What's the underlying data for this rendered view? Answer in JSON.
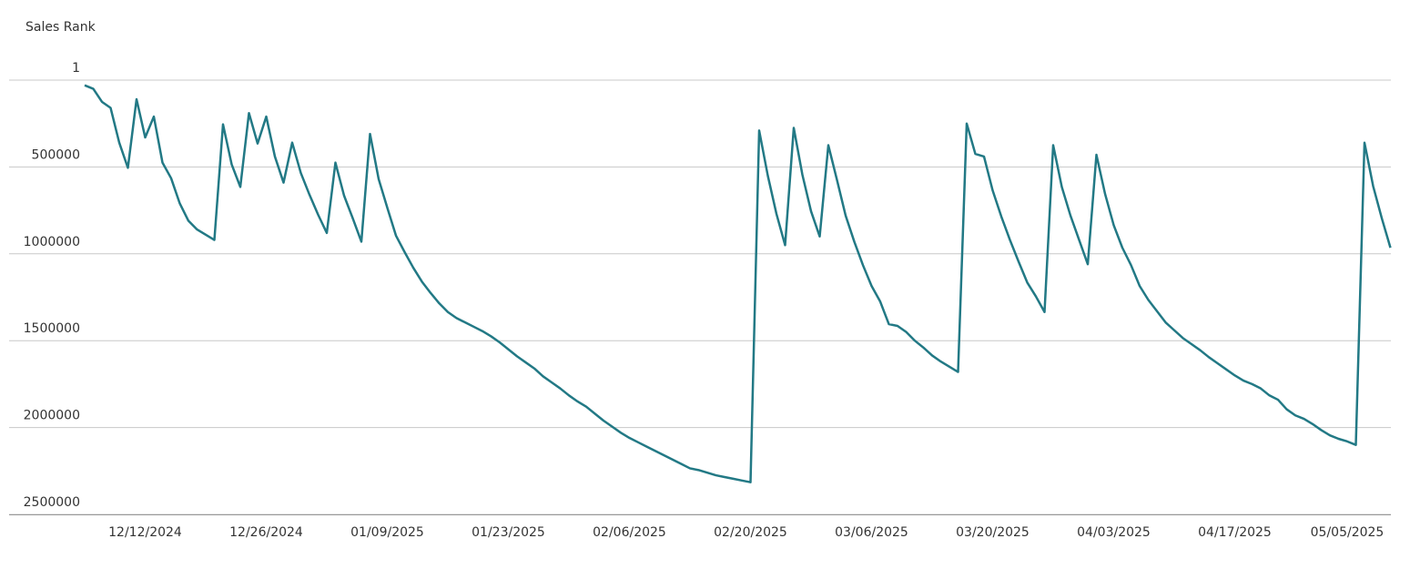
{
  "chart_data": {
    "type": "line",
    "y_label": "Sales Rank",
    "categories": [
      null,
      null,
      null,
      null,
      null,
      null,
      null,
      "12/12/2024",
      null,
      null,
      null,
      null,
      null,
      null,
      null,
      null,
      null,
      null,
      null,
      null,
      null,
      "12/26/2024",
      null,
      null,
      null,
      null,
      null,
      null,
      null,
      null,
      null,
      null,
      null,
      null,
      null,
      "01/09/2025",
      null,
      null,
      null,
      null,
      null,
      null,
      null,
      null,
      null,
      null,
      null,
      null,
      null,
      "01/23/2025",
      null,
      null,
      null,
      null,
      null,
      null,
      null,
      null,
      null,
      null,
      null,
      null,
      null,
      "02/06/2025",
      null,
      null,
      null,
      null,
      null,
      null,
      null,
      null,
      null,
      null,
      null,
      null,
      null,
      "02/20/2025",
      null,
      null,
      null,
      null,
      null,
      null,
      null,
      null,
      null,
      null,
      null,
      null,
      null,
      "03/06/2025",
      null,
      null,
      null,
      null,
      null,
      null,
      null,
      null,
      null,
      null,
      null,
      null,
      null,
      "03/20/2025",
      null,
      null,
      null,
      null,
      null,
      null,
      null,
      null,
      null,
      null,
      null,
      null,
      null,
      "04/03/2025",
      null,
      null,
      null,
      null,
      null,
      null,
      null,
      null,
      null,
      null,
      null,
      null,
      null,
      "04/17/2025",
      null,
      null,
      null,
      null,
      null,
      null,
      null,
      null,
      null,
      null,
      null,
      null,
      "05/05/2025",
      null,
      null,
      null,
      null,
      null
    ],
    "values": [
      30000,
      50000,
      125000,
      160000,
      360000,
      505000,
      110000,
      330000,
      210000,
      475000,
      565000,
      710000,
      810000,
      860000,
      890000,
      920000,
      255000,
      485000,
      615000,
      190000,
      365000,
      210000,
      440000,
      590000,
      360000,
      535000,
      660000,
      775000,
      880000,
      475000,
      665000,
      795000,
      930000,
      310000,
      570000,
      735000,
      895000,
      990000,
      1080000,
      1160000,
      1225000,
      1285000,
      1335000,
      1370000,
      1395000,
      1420000,
      1445000,
      1475000,
      1510000,
      1550000,
      1590000,
      1625000,
      1660000,
      1705000,
      1740000,
      1775000,
      1815000,
      1850000,
      1880000,
      1920000,
      1960000,
      1995000,
      2030000,
      2060000,
      2085000,
      2110000,
      2135000,
      2160000,
      2185000,
      2210000,
      2235000,
      2245000,
      2260000,
      2275000,
      2285000,
      2295000,
      2305000,
      2315000,
      290000,
      550000,
      770000,
      950000,
      275000,
      545000,
      755000,
      900000,
      375000,
      575000,
      780000,
      930000,
      1065000,
      1185000,
      1275000,
      1405000,
      1415000,
      1450000,
      1500000,
      1540000,
      1585000,
      1620000,
      1650000,
      1680000,
      250000,
      425000,
      440000,
      635000,
      785000,
      920000,
      1045000,
      1165000,
      1245000,
      1335000,
      375000,
      615000,
      780000,
      920000,
      1060000,
      430000,
      655000,
      835000,
      965000,
      1065000,
      1185000,
      1265000,
      1330000,
      1395000,
      1440000,
      1485000,
      1520000,
      1555000,
      1595000,
      1630000,
      1665000,
      1700000,
      1730000,
      1750000,
      1775000,
      1815000,
      1840000,
      1895000,
      1930000,
      1950000,
      1980000,
      2015000,
      2045000,
      2065000,
      2080000,
      2100000,
      360000,
      610000,
      795000,
      965000
    ],
    "color": "#227985",
    "ylim": [
      1,
      2500000
    ],
    "yticks": [
      1,
      500000,
      1000000,
      1500000,
      2000000,
      2500000
    ],
    "y_reversed": true,
    "grid": true
  }
}
